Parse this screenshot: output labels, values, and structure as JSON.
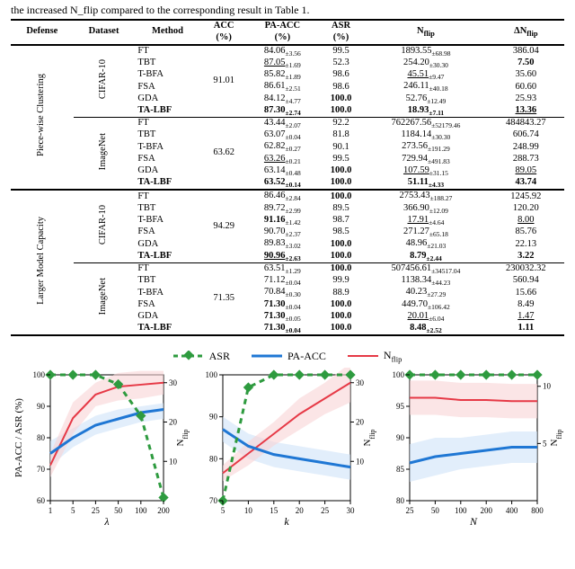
{
  "caption": "the increased N_flip compared to the corresponding result in Table 1.",
  "headers": {
    "defense": "Defense",
    "dataset": "Dataset",
    "method": "Method",
    "acc": "ACC",
    "acc_unit": "(%)",
    "paacc": "PA-ACC",
    "paacc_unit": "(%)",
    "asr": "ASR",
    "asr_unit": "(%)",
    "nflip": "N_flip",
    "dnflip": "ΔN_flip"
  },
  "blocks": [
    {
      "defense": "Piece-wise Clustering",
      "groups": [
        {
          "dataset": "CIFAR-10",
          "acc": "91.01",
          "rows": [
            {
              "m": "FT",
              "pa": "84.06",
              "pae": "±3.56",
              "asr": "99.5",
              "nf": "1893.55",
              "nfe": "±68.98",
              "dn": "386.04"
            },
            {
              "m": "TBT",
              "pa": "87.05",
              "pae": "±1.69",
              "asr": "52.3",
              "nf": "254.20",
              "nfe": "±30.30",
              "dn": "7.50",
              "pa_u": true,
              "dn_b": true
            },
            {
              "m": "T-BFA",
              "pa": "85.82",
              "pae": "±1.89",
              "asr": "98.6",
              "nf": "45.51",
              "nfe": "±9.47",
              "dn": "35.60",
              "nf_u": true
            },
            {
              "m": "FSA",
              "pa": "86.61",
              "pae": "±2.51",
              "asr": "98.6",
              "nf": "246.11",
              "nfe": "±40.18",
              "dn": "60.60"
            },
            {
              "m": "GDA",
              "pa": "84.12",
              "pae": "±4.77",
              "asr": "100.0",
              "nf": "52.76",
              "nfe": "±12.49",
              "dn": "25.93",
              "asr_b": true
            },
            {
              "m": "TA-LBF",
              "pa": "87.30",
              "pae": "±2.74",
              "asr": "100.0",
              "nf": "18.93",
              "nfe": "±7.11",
              "dn": "13.36",
              "bold": true,
              "pa_b": true,
              "asr_b": true,
              "nf_b": true,
              "dn_u": true
            }
          ]
        },
        {
          "dataset": "ImageNet",
          "acc": "63.62",
          "rows": [
            {
              "m": "FT",
              "pa": "43.44",
              "pae": "±2.07",
              "asr": "92.2",
              "nf": "762267.56",
              "nfe": "±52179.46",
              "dn": "484843.27"
            },
            {
              "m": "TBT",
              "pa": "63.07",
              "pae": "±0.04",
              "asr": "81.8",
              "nf": "1184.14",
              "nfe": "±30.30",
              "dn": "606.74"
            },
            {
              "m": "T-BFA",
              "pa": "62.82",
              "pae": "±0.27",
              "asr": "90.1",
              "nf": "273.56",
              "nfe": "±191.29",
              "dn": "248.99"
            },
            {
              "m": "FSA",
              "pa": "63.26",
              "pae": "±0.21",
              "asr": "99.5",
              "nf": "729.94",
              "nfe": "±491.83",
              "dn": "288.73",
              "pa_u": true
            },
            {
              "m": "GDA",
              "pa": "63.14",
              "pae": "±0.48",
              "asr": "100.0",
              "nf": "107.59",
              "nfe": "±31.15",
              "dn": "89.05",
              "asr_b": true,
              "nf_u": true,
              "dn_u": true
            },
            {
              "m": "TA-LBF",
              "pa": "63.52",
              "pae": "±0.14",
              "asr": "100.0",
              "nf": "51.11",
              "nfe": "±4.33",
              "dn": "43.74",
              "bold": true,
              "pa_b": true,
              "asr_b": true,
              "nf_b": true,
              "dn_b": true
            }
          ]
        }
      ]
    },
    {
      "defense": "Larger Model Capacity",
      "groups": [
        {
          "dataset": "CIFAR-10",
          "acc": "94.29",
          "rows": [
            {
              "m": "FT",
              "pa": "86.46",
              "pae": "±2.84",
              "asr": "100.0",
              "nf": "2753.43",
              "nfe": "±188.27",
              "dn": "1245.92",
              "asr_b": true
            },
            {
              "m": "TBT",
              "pa": "89.72",
              "pae": "±2.99",
              "asr": "89.5",
              "nf": "366.90",
              "nfe": "±12.09",
              "dn": "120.20"
            },
            {
              "m": "T-BFA",
              "pa": "91.16",
              "pae": "±1.42",
              "asr": "98.7",
              "nf": "17.91",
              "nfe": "±4.64",
              "dn": "8.00",
              "pa_b": true,
              "nf_u": true,
              "dn_u": true
            },
            {
              "m": "FSA",
              "pa": "90.70",
              "pae": "±2.37",
              "asr": "98.5",
              "nf": "271.27",
              "nfe": "±65.18",
              "dn": "85.76"
            },
            {
              "m": "GDA",
              "pa": "89.83",
              "pae": "±3.02",
              "asr": "100.0",
              "nf": "48.96",
              "nfe": "±21.03",
              "dn": "22.13",
              "asr_b": true
            },
            {
              "m": "TA-LBF",
              "pa": "90.96",
              "pae": "±2.63",
              "asr": "100.0",
              "nf": "8.79",
              "nfe": "±2.44",
              "dn": "3.22",
              "bold": true,
              "pa_u": true,
              "asr_b": true,
              "nf_b": true,
              "dn_b": true
            }
          ]
        },
        {
          "dataset": "ImageNet",
          "acc": "71.35",
          "rows": [
            {
              "m": "FT",
              "pa": "63.51",
              "pae": "±1.29",
              "asr": "100.0",
              "nf": "507456.61",
              "nfe": "±34517.04",
              "dn": "230032.32",
              "asr_b": true
            },
            {
              "m": "TBT",
              "pa": "71.12",
              "pae": "±0.04",
              "asr": "99.9",
              "nf": "1138.34",
              "nfe": "±44.23",
              "dn": "560.94"
            },
            {
              "m": "T-BFA",
              "pa": "70.84",
              "pae": "±0.30",
              "asr": "88.9",
              "nf": "40.23",
              "nfe": "±27.29",
              "dn": "15.66"
            },
            {
              "m": "FSA",
              "pa": "71.30",
              "pae": "±0.04",
              "asr": "100.0",
              "nf": "449.70",
              "nfe": "±106.42",
              "dn": "8.49",
              "pa_b": true,
              "asr_b": true
            },
            {
              "m": "GDA",
              "pa": "71.30",
              "pae": "±0.05",
              "asr": "100.0",
              "nf": "20.01",
              "nfe": "±6.04",
              "dn": "1.47",
              "pa_b": true,
              "asr_b": true,
              "nf_u": true,
              "dn_u": true
            },
            {
              "m": "TA-LBF",
              "pa": "71.30",
              "pae": "±0.04",
              "asr": "100.0",
              "nf": "8.48",
              "nfe": "±2.52",
              "dn": "1.11",
              "bold": true,
              "pa_b": true,
              "asr_b": true,
              "nf_b": true,
              "dn_b": true
            }
          ]
        }
      ]
    }
  ],
  "legend": {
    "asr": "ASR",
    "paacc": "PA-ACC",
    "nflip": "N_flip"
  },
  "colors": {
    "asr": "#2e9b3f",
    "paacc": "#1f77d4",
    "nflip": "#e63946",
    "asr_fill": "#c9e8cf",
    "paacc_fill": "#cfe2f8",
    "nflip_fill": "#f8d4d6",
    "axis": "#000000"
  },
  "chart1": {
    "xlabel": "λ",
    "ylabel_left": "PA-ACC / ASR (%)",
    "ylabel_right": "N_flip",
    "xticks": [
      "1",
      "5",
      "25",
      "50",
      "100",
      "200"
    ],
    "yleft": [
      "60",
      "70",
      "80",
      "90",
      "100"
    ],
    "yright": [
      "10",
      "20",
      "30"
    ],
    "series": {
      "paacc": [
        75,
        80,
        84,
        86,
        88,
        89
      ],
      "asr": [
        100,
        100,
        100,
        97,
        87,
        61
      ],
      "nflip": [
        9,
        21,
        27,
        29,
        29.5,
        30
      ],
      "paacc_lo": [
        71,
        77,
        81,
        83,
        85,
        86
      ],
      "paacc_hi": [
        79,
        83,
        87,
        89,
        90,
        91
      ],
      "nflip_lo": [
        6,
        17,
        24,
        25.5,
        26,
        27
      ],
      "nflip_hi": [
        12,
        25,
        30,
        32.5,
        33,
        33
      ]
    }
  },
  "chart2": {
    "xlabel": "k",
    "xticks": [
      "5",
      "10",
      "15",
      "20",
      "25",
      "30"
    ],
    "yleft": [
      "70",
      "80",
      "90",
      "100"
    ],
    "yright": [
      "10",
      "20",
      "30"
    ],
    "series": {
      "paacc": [
        87,
        83,
        81,
        80,
        79,
        78
      ],
      "asr": [
        70,
        97,
        100,
        100,
        100,
        100
      ],
      "nflip": [
        7,
        12,
        17,
        22,
        26,
        30
      ],
      "paacc_lo": [
        84,
        80,
        78,
        77,
        76,
        75
      ],
      "paacc_hi": [
        90,
        86,
        84,
        83,
        82,
        81
      ],
      "nflip_lo": [
        5,
        9,
        14,
        18,
        22,
        25
      ],
      "nflip_hi": [
        9,
        15,
        20,
        26,
        30,
        35
      ]
    }
  },
  "chart3": {
    "xlabel": "N",
    "xticks": [
      "25",
      "50",
      "100",
      "200",
      "400",
      "800"
    ],
    "yleft": [
      "80",
      "85",
      "90",
      "95",
      "100"
    ],
    "yright": [
      "5",
      "10"
    ],
    "series": {
      "paacc": [
        86,
        87,
        87.5,
        88,
        88.5,
        88.5
      ],
      "asr": [
        100,
        100,
        100,
        100,
        100,
        100
      ],
      "nflip": [
        9,
        9,
        8.8,
        8.8,
        8.7,
        8.7
      ],
      "paacc_lo": [
        83,
        84,
        85,
        85.5,
        86,
        86
      ],
      "paacc_hi": [
        89,
        90,
        90,
        90.5,
        91,
        91
      ],
      "nflip_lo": [
        7.5,
        7.5,
        7.3,
        7.3,
        7.2,
        7.2
      ],
      "nflip_hi": [
        10.5,
        10.5,
        10.3,
        10.3,
        10.2,
        10.2
      ]
    }
  }
}
